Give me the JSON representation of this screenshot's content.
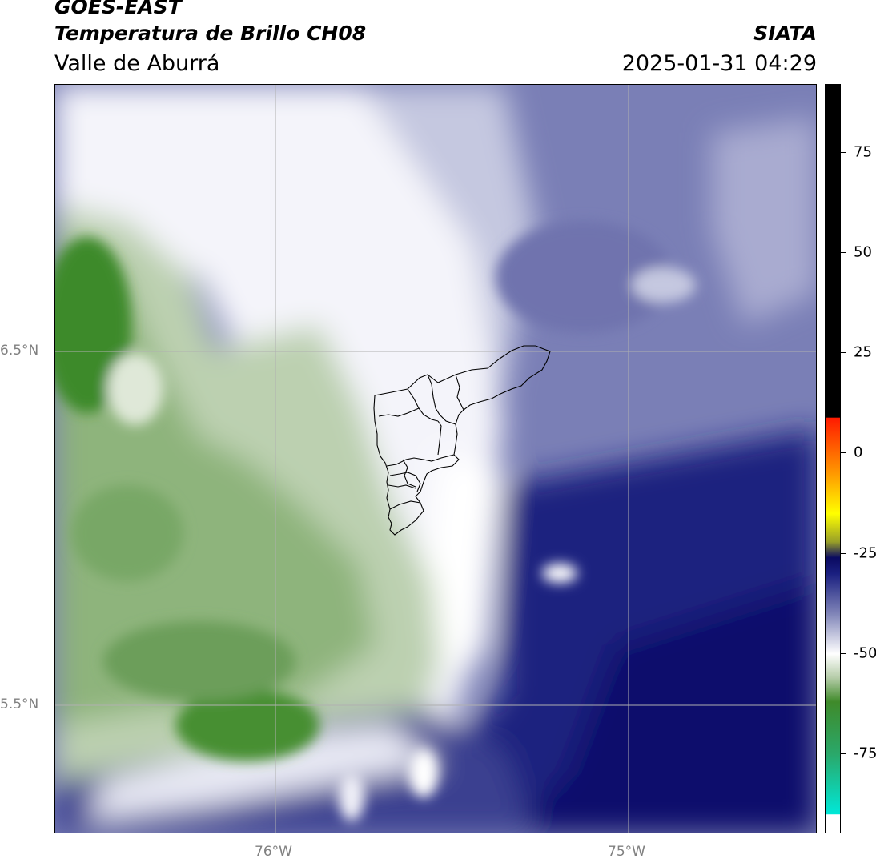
{
  "header": {
    "line1": "GOES-EAST",
    "line2": "Temperatura de Brillo CH08",
    "line3": "Valle de Aburrá",
    "org": "SIATA",
    "datetime": "2025-01-31 04:29"
  },
  "map": {
    "lat_labels": [
      "6.5°N",
      "5.5°N"
    ],
    "lon_labels": [
      "76°W",
      "75°W"
    ],
    "gridline_color": "#b0b0b0",
    "boundary_color": "#000000"
  },
  "colorbar": {
    "tick_labels": [
      "75",
      "50",
      "25",
      "0",
      "-25",
      "-50",
      "-75"
    ],
    "tick_values": [
      75,
      50,
      25,
      0,
      -25,
      -50,
      -75
    ],
    "range": [
      -95,
      92
    ],
    "stops": [
      {
        "value": 92,
        "color": "#000000"
      },
      {
        "value": 9,
        "color": "#000000"
      },
      {
        "value": 8.9,
        "color": "#ff1a00"
      },
      {
        "value": -5,
        "color": "#ff9900"
      },
      {
        "value": -15,
        "color": "#ffff00"
      },
      {
        "value": -22,
        "color": "#99a028"
      },
      {
        "value": -26,
        "color": "#0a0a60"
      },
      {
        "value": -30,
        "color": "#1a1f80"
      },
      {
        "value": -40,
        "color": "#8085b8"
      },
      {
        "value": -50,
        "color": "#ffffff"
      },
      {
        "value": -56,
        "color": "#b5cca8"
      },
      {
        "value": -62,
        "color": "#3f8a2a"
      },
      {
        "value": -75,
        "color": "#2aa86a"
      },
      {
        "value": -90,
        "color": "#00e8d8"
      },
      {
        "value": -90.1,
        "color": "#ffffff"
      },
      {
        "value": -95,
        "color": "#ffffff"
      }
    ]
  }
}
